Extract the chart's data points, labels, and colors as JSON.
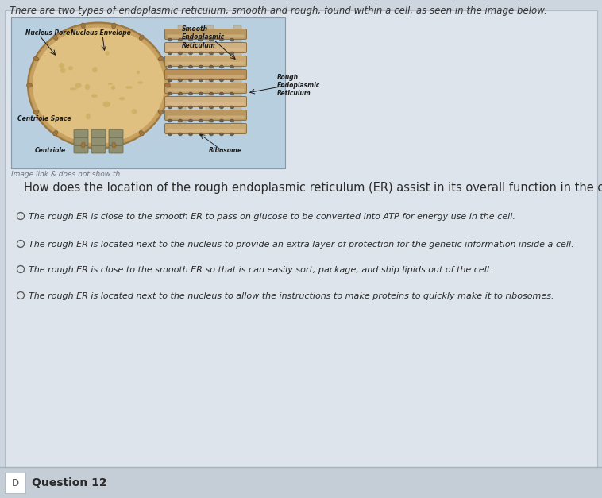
{
  "background_color": "#cdd5de",
  "header_text": "There are two types of endoplasmic reticulum, smooth and rough, found within a cell, as seen in the image below.",
  "image_caption": "Image link & does not show th",
  "question": "How does the location of the rough endoplasmic reticulum (ER) assist in its overall function in the cell?",
  "options": [
    "The rough ER is close to the smooth ER to pass on glucose to be converted into ATP for energy use in the cell.",
    "The rough ER is located next to the nucleus to provide an extra layer of protection for the genetic information inside a cell.",
    "The rough ER is close to the smooth ER so that is can easily sort, package, and ship lipids out of the cell.",
    "The rough ER is located next to the nucleus to allow the instructions to make proteins to quickly make it to ribosomes."
  ],
  "footer_text": "Question 12",
  "main_bg": "#cdd5de",
  "content_bg": "#dde4eb",
  "text_color": "#2a2a2a",
  "option_text_color": "#2a2a2a",
  "header_fontsize": 8.5,
  "question_fontsize": 10.5,
  "option_fontsize": 8.0,
  "caption_fontsize": 6.5,
  "footer_fontsize": 10
}
